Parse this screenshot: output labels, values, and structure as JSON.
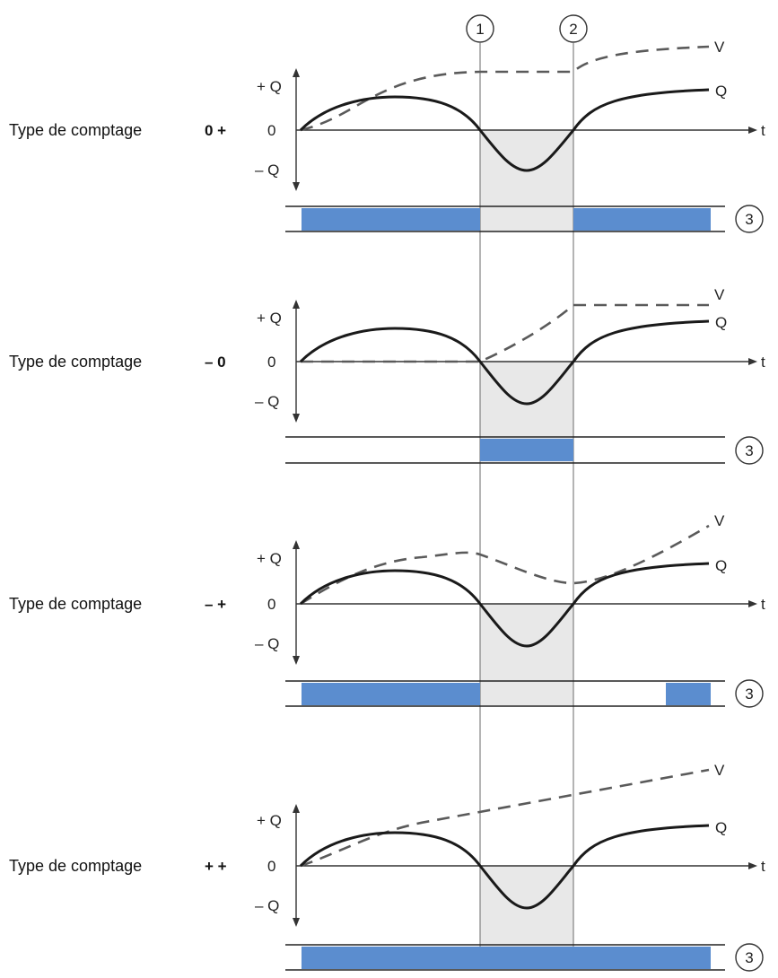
{
  "markers": {
    "m1": "1",
    "m2": "2",
    "m3": "3"
  },
  "axis": {
    "plus": "+ Q",
    "zero": "0",
    "minus": "– Q",
    "t": "t"
  },
  "curve_labels": {
    "v": "V",
    "q": "Q"
  },
  "colors": {
    "bar": "#5b8dcf",
    "shade": "#e8e8e8",
    "q": "#1a1a1a",
    "v": "#5a5a5a"
  },
  "rows": [
    {
      "label": "Type de comptage",
      "mode": "0 +"
    },
    {
      "label": "Type de comptage",
      "mode": "– 0"
    },
    {
      "label": "Type de comptage",
      "mode": "– +"
    },
    {
      "label": "Type de comptage",
      "mode": "+ +"
    }
  ]
}
